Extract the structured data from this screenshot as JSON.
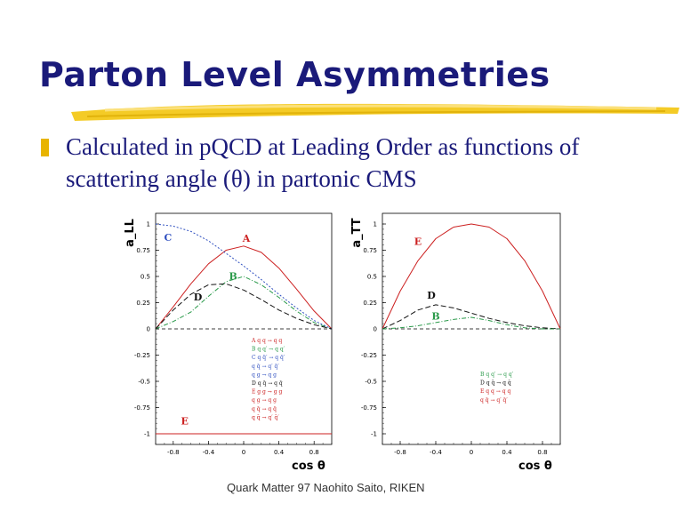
{
  "slide": {
    "title": "Parton Level Asymmetries",
    "bullet": "Calculated in pQCD at Leading Order as functions of scattering angle (θ) in partonic CMS",
    "footer": "Quark Matter 97  Naohito Saito, RIKEN",
    "colors": {
      "title": "#1a1a7a",
      "bullet": "#e8b400",
      "brush": "#f2c200"
    }
  },
  "chart_data": [
    {
      "type": "line",
      "ylabel": "a_LL",
      "xlabel": "cos θ",
      "xlim": [
        -1,
        1
      ],
      "ylim": [
        -1,
        1
      ],
      "xticks": [
        "-0.8",
        "-0.4",
        "0",
        "0.4",
        "0.8"
      ],
      "yticks": [
        "1",
        "0.75",
        "0.5",
        "0.25",
        "0",
        "-0.25",
        "-0.5",
        "-0.75",
        "-1"
      ],
      "series": [
        {
          "name": "A",
          "color": "#cc2020",
          "dash": "solid",
          "x": [
            -1,
            -0.8,
            -0.6,
            -0.4,
            -0.2,
            0,
            0.2,
            0.4,
            0.6,
            0.8,
            1
          ],
          "y": [
            0,
            0.21,
            0.43,
            0.62,
            0.75,
            0.79,
            0.73,
            0.58,
            0.38,
            0.17,
            0
          ]
        },
        {
          "name": "B",
          "color": "#2a9a4a",
          "dash": "dashdot",
          "x": [
            -1,
            -0.8,
            -0.6,
            -0.4,
            -0.2,
            0,
            0.2,
            0.4,
            0.6,
            0.8,
            1
          ],
          "y": [
            0,
            0.07,
            0.16,
            0.31,
            0.45,
            0.5,
            0.42,
            0.3,
            0.17,
            0.06,
            0
          ]
        },
        {
          "name": "C",
          "color": "#3050c0",
          "dash": "dot",
          "x": [
            -1,
            -0.8,
            -0.6,
            -0.4,
            -0.2,
            0,
            0.2,
            0.4,
            0.6,
            0.8,
            1
          ],
          "y": [
            1,
            0.98,
            0.93,
            0.84,
            0.72,
            0.6,
            0.47,
            0.33,
            0.2,
            0.08,
            0
          ]
        },
        {
          "name": "D",
          "color": "#111111",
          "dash": "longdash",
          "x": [
            -1,
            -0.8,
            -0.6,
            -0.4,
            -0.2,
            0,
            0.2,
            0.4,
            0.6,
            0.8,
            1
          ],
          "y": [
            0,
            0.18,
            0.33,
            0.42,
            0.43,
            0.37,
            0.28,
            0.18,
            0.1,
            0.04,
            0
          ]
        },
        {
          "name": "E",
          "color": "#cc2020",
          "dash": "solid",
          "x": [
            -1,
            1
          ],
          "y": [
            -1,
            -1
          ]
        }
      ],
      "curve_labels": [
        {
          "text": "C",
          "x": -0.86,
          "y": 0.84,
          "color": "#3050c0"
        },
        {
          "text": "A",
          "x": 0.03,
          "y": 0.83,
          "color": "#cc2020"
        },
        {
          "text": "B",
          "x": -0.12,
          "y": 0.47,
          "color": "#2a9a4a"
        },
        {
          "text": "D",
          "x": -0.52,
          "y": 0.27,
          "color": "#111111"
        },
        {
          "text": "E",
          "x": -0.67,
          "y": -0.91,
          "color": "#cc2020"
        }
      ],
      "legend": [
        {
          "text": "A  q q    →  q q",
          "color": "#cc2020"
        },
        {
          "text": "B  q q′   →  q q′",
          "color": "#2a9a4a"
        },
        {
          "text": "C  q q̄′   →  q q̄′",
          "color": "#3050c0"
        },
        {
          "text": "    q q̄    →  q′ q̄′",
          "color": "#3050c0"
        },
        {
          "text": "    q g    →  q g",
          "color": "#3050c0"
        },
        {
          "text": "D  q q̄    →  q q̄",
          "color": "#111111"
        },
        {
          "text": "E  g g    →  g g",
          "color": "#cc2020"
        },
        {
          "text": "    q g    →  q g",
          "color": "#cc2020"
        },
        {
          "text": "    q q̄    →  q q̄",
          "color": "#cc2020"
        },
        {
          "text": "    q q̄    →  q′ q̄′",
          "color": "#cc2020"
        }
      ]
    },
    {
      "type": "line",
      "ylabel": "a_TT",
      "xlabel": "cos θ",
      "xlim": [
        -1,
        1
      ],
      "ylim": [
        -1,
        1
      ],
      "xticks": [
        "-0.8",
        "-0.4",
        "0",
        "0.4",
        "0.8"
      ],
      "yticks": [
        "1",
        "0.75",
        "0.5",
        "0.25",
        "0",
        "-0.25",
        "-0.5",
        "-0.75",
        "-1"
      ],
      "series": [
        {
          "name": "E",
          "color": "#cc2020",
          "dash": "solid",
          "x": [
            -1,
            -0.8,
            -0.6,
            -0.4,
            -0.2,
            0,
            0.2,
            0.4,
            0.6,
            0.8,
            1
          ],
          "y": [
            0,
            0.36,
            0.65,
            0.86,
            0.97,
            1,
            0.97,
            0.86,
            0.65,
            0.36,
            0
          ]
        },
        {
          "name": "D",
          "color": "#111111",
          "dash": "longdash",
          "x": [
            -1,
            -0.8,
            -0.6,
            -0.4,
            -0.2,
            0,
            0.2,
            0.4,
            0.6,
            0.8,
            1
          ],
          "y": [
            0,
            0.08,
            0.18,
            0.23,
            0.2,
            0.15,
            0.1,
            0.06,
            0.03,
            0.01,
            0
          ]
        },
        {
          "name": "B",
          "color": "#2a9a4a",
          "dash": "dashdot",
          "x": [
            -1,
            -0.8,
            -0.6,
            -0.4,
            -0.2,
            0,
            0.2,
            0.4,
            0.6,
            0.8,
            1
          ],
          "y": [
            0,
            0.01,
            0.03,
            0.06,
            0.09,
            0.11,
            0.08,
            0.04,
            0.01,
            0,
            0
          ]
        }
      ],
      "curve_labels": [
        {
          "text": "E",
          "x": -0.6,
          "y": 0.8,
          "color": "#cc2020"
        },
        {
          "text": "D",
          "x": -0.45,
          "y": 0.29,
          "color": "#111111"
        },
        {
          "text": "B",
          "x": -0.4,
          "y": 0.09,
          "color": "#2a9a4a"
        }
      ],
      "legend": [
        {
          "text": "B  q q′   →  q q′",
          "color": "#2a9a4a"
        },
        {
          "text": "D  q q̄    →  q q̄",
          "color": "#111111"
        },
        {
          "text": "E  q q    →  q q",
          "color": "#cc2020"
        },
        {
          "text": "    q q̄    →  q′ q̄′",
          "color": "#cc2020"
        }
      ]
    }
  ]
}
